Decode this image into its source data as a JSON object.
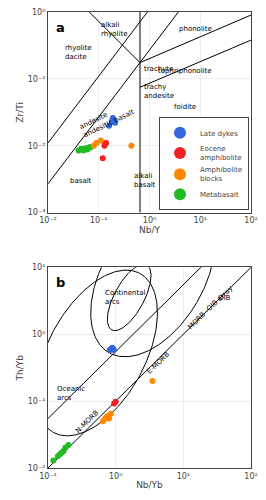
{
  "chart_data": [
    {
      "type": "scatter",
      "title": "a",
      "xlabel": "Nb/Y",
      "ylabel": "Zr/Ti",
      "log": true,
      "grid": true,
      "legend": "lower right",
      "xlim": [
        0.01,
        100
      ],
      "ylim": [
        0.001,
        1
      ],
      "xticks": [
        {
          "value": 0.01,
          "label": "10⁻²"
        },
        {
          "value": 0.1,
          "label": "10⁻¹"
        },
        {
          "value": 1,
          "label": "10⁰"
        },
        {
          "value": 10,
          "label": "10¹"
        },
        {
          "value": 100,
          "label": "10²"
        }
      ],
      "yticks": [
        {
          "value": 0.001,
          "label": "10⁻³"
        },
        {
          "value": 0.01,
          "label": "10⁻²"
        },
        {
          "value": 0.1,
          "label": "10⁻¹"
        },
        {
          "value": 1,
          "label": "10⁰"
        }
      ],
      "series": [
        {
          "name": "Metabasalt",
          "color": "#22bb22",
          "x": [
            0.04,
            0.045,
            0.05,
            0.055,
            0.06,
            0.065,
            0.07
          ],
          "y": [
            0.0085,
            0.009,
            0.0085,
            0.0092,
            0.0088,
            0.0095,
            0.0095
          ]
        },
        {
          "name": "Amphibolite\nblocks",
          "color": "#ff8800",
          "x": [
            0.08,
            0.09,
            0.11,
            0.13,
            0.44
          ],
          "y": [
            0.01,
            0.011,
            0.012,
            0.011,
            0.01
          ]
        },
        {
          "name": "Eocene\namphibolite",
          "color": "#ee2222",
          "x": [
            0.12,
            0.13,
            0.14
          ],
          "y": [
            0.0065,
            0.01,
            0.011
          ]
        },
        {
          "name": "Late dykes",
          "color": "#3366dd",
          "x": [
            0.16,
            0.18,
            0.19,
            0.2,
            0.21
          ],
          "y": [
            0.02,
            0.023,
            0.026,
            0.024,
            0.022
          ]
        }
      ],
      "lines": [
        {
          "x": [
            0.01,
            10
          ],
          "y": [
            0.0027,
            2.7
          ]
        },
        {
          "x": [
            0.01,
            10
          ],
          "y": [
            0.011,
            11
          ]
        },
        {
          "x": [
            0.65,
            100
          ],
          "y": [
            0.175,
            0.9
          ]
        },
        {
          "x": [
            0.65,
            100
          ],
          "y": [
            0.075,
            0.38
          ]
        },
        {
          "x": [
            0.065,
            0.65
          ],
          "y": [
            1.0,
            0.175
          ]
        }
      ],
      "vlines": [
        0.65
      ],
      "annotations": [
        {
          "text": "rhyolite\ndacite",
          "x": 0.02,
          "y": 0.25
        },
        {
          "text": "alkali\nrhyolite",
          "x": 0.2,
          "y": 0.55
        },
        {
          "text": "phonolite",
          "x": 8,
          "y": 0.55
        },
        {
          "text": "trachyte",
          "x": 0.7,
          "y": 0.17
        },
        {
          "text": "tephriphonolite",
          "x": 5,
          "y": 0.13
        },
        {
          "text": "trachy\nandesite",
          "x": 0.7,
          "y": 0.065
        },
        {
          "text": "foidite",
          "x": 5,
          "y": 0.038
        },
        {
          "text": "andesite\nandesitic basalt",
          "x": 0.035,
          "y": 0.025
        },
        {
          "text": "basalt",
          "x": 0.025,
          "y": 0.003
        },
        {
          "text": "alkali\nbasalt",
          "x": 0.8,
          "y": 0.003
        }
      ]
    },
    {
      "type": "scatter",
      "title": "b",
      "xlabel": "Nb/Yb",
      "ylabel": "Th/Yb",
      "log": true,
      "grid": true,
      "xlim": [
        0.1,
        100
      ],
      "ylim": [
        0.01,
        10
      ],
      "xticks": [
        {
          "value": 0.1,
          "label": "10⁻¹"
        },
        {
          "value": 1,
          "label": "10⁰"
        },
        {
          "value": 10,
          "label": "10¹"
        },
        {
          "value": 100,
          "label": "10²"
        }
      ],
      "yticks": [
        {
          "value": 0.01,
          "label": "10⁻²"
        },
        {
          "value": 0.1,
          "label": "10⁻¹"
        },
        {
          "value": 1,
          "label": "10⁰"
        },
        {
          "value": 10,
          "label": "10¹"
        }
      ],
      "series": [
        {
          "color": "#22bb22",
          "x": [
            0.12,
            0.14,
            0.15,
            0.16,
            0.17,
            0.18,
            0.2
          ],
          "y": [
            0.013,
            0.015,
            0.016,
            0.017,
            0.018,
            0.02,
            0.022
          ]
        },
        {
          "color": "#ff8800",
          "x": [
            0.65,
            0.7,
            0.75,
            0.8,
            0.85,
            3.5
          ],
          "y": [
            0.05,
            0.055,
            0.06,
            0.055,
            0.065,
            0.2
          ]
        },
        {
          "color": "#ee2222",
          "x": [
            0.95,
            1.0
          ],
          "y": [
            0.092,
            0.098
          ]
        },
        {
          "color": "#3366dd",
          "x": [
            0.82,
            0.86,
            0.89,
            0.92,
            0.94
          ],
          "y": [
            0.58,
            0.6,
            0.63,
            0.6,
            0.58
          ]
        }
      ],
      "lines": [
        {
          "x": [
            0.1,
            100
          ],
          "y": [
            0.01,
            10
          ]
        },
        {
          "x": [
            0.1,
            100
          ],
          "y": [
            0.055,
            55
          ]
        }
      ],
      "ellipses": [
        {
          "cx": 0.55,
          "cy": 0.85,
          "a": 0.75,
          "b": 1.3,
          "angle": -30
        },
        {
          "cx": 0.2,
          "cy": 0.55,
          "a": 0.22,
          "b": 0.55,
          "angle": -28
        },
        {
          "cx": -0.28,
          "cy": -0.28,
          "a": 0.72,
          "b": 1.35,
          "angle": -28
        }
      ],
      "annotations": [
        {
          "text": "N-MORB",
          "x": 0.22,
          "y": 0.028
        },
        {
          "text": "E-MORB",
          "x": 2.5,
          "y": 0.22
        },
        {
          "text": "OIB",
          "x": 30,
          "y": 3.5
        },
        {
          "text": "MORB -OIB array",
          "x": 10,
          "y": 1.0
        },
        {
          "text": "Continental\narcs",
          "x": 1.4,
          "y": 3.5
        },
        {
          "text": "Oceanic\narcs",
          "x": 0.22,
          "y": 0.13
        }
      ]
    }
  ]
}
